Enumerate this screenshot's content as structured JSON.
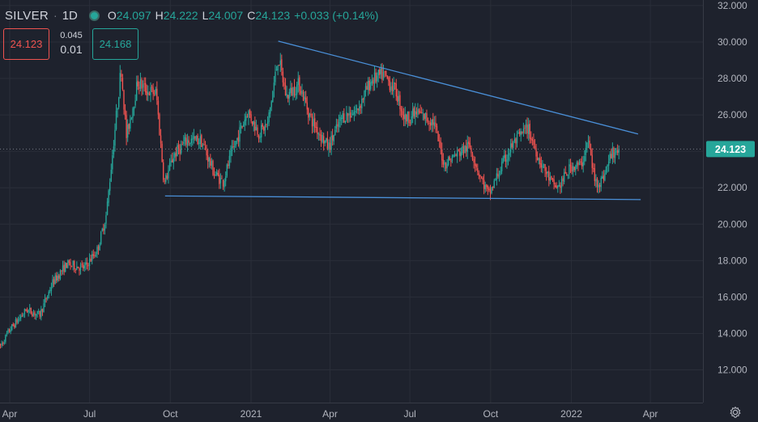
{
  "header": {
    "symbol": "SILVER",
    "timeframe": "1D",
    "open_label": "O",
    "open": "24.097",
    "high_label": "H",
    "high": "24.222",
    "low_label": "L",
    "low": "24.007",
    "close_label": "C",
    "close": "24.123",
    "change": "+0.033 (+0.14%)"
  },
  "trade": {
    "bid": "24.123",
    "spread_top": "0.045",
    "spread_bottom": "0.01",
    "ask": "24.168"
  },
  "colors": {
    "up": "#26a69a",
    "down": "#ef5350",
    "trendline": "#4a90d9",
    "background": "#1e222d",
    "grid": "#2a2e39"
  },
  "chart_data": {
    "type": "candlestick",
    "x_ticks": [
      "Apr",
      "Jul",
      "Oct",
      "2021",
      "Apr",
      "Jul",
      "Oct",
      "2022",
      "Apr"
    ],
    "x_tick_dates": [
      "2020-04-01",
      "2020-07-01",
      "2020-10-01",
      "2021-01-01",
      "2021-04-01",
      "2021-07-01",
      "2021-10-01",
      "2022-01-01",
      "2022-04-01"
    ],
    "y_ticks": [
      "32.000",
      "30.000",
      "28.000",
      "26.000",
      "24.000",
      "22.000",
      "20.000",
      "18.000",
      "16.000",
      "14.000",
      "12.000"
    ],
    "ylim": [
      10.9,
      32.2
    ],
    "grid": true,
    "last_price": "24.123",
    "price_path": [
      [
        "2020-03-20",
        13.2
      ],
      [
        "2020-04-01",
        14.2
      ],
      [
        "2020-04-20",
        15.3
      ],
      [
        "2020-05-05",
        15.0
      ],
      [
        "2020-05-20",
        16.8
      ],
      [
        "2020-06-05",
        17.8
      ],
      [
        "2020-06-25",
        17.6
      ],
      [
        "2020-07-10",
        18.6
      ],
      [
        "2020-07-20",
        20.5
      ],
      [
        "2020-07-28",
        24.3
      ],
      [
        "2020-08-06",
        28.6
      ],
      [
        "2020-08-12",
        24.8
      ],
      [
        "2020-08-25",
        27.8
      ],
      [
        "2020-09-05",
        27.3
      ],
      [
        "2020-09-15",
        27.2
      ],
      [
        "2020-09-24",
        22.2
      ],
      [
        "2020-10-05",
        23.8
      ],
      [
        "2020-10-20",
        24.6
      ],
      [
        "2020-11-05",
        24.6
      ],
      [
        "2020-11-20",
        22.8
      ],
      [
        "2020-11-30",
        22.3
      ],
      [
        "2020-12-10",
        23.9
      ],
      [
        "2020-12-28",
        26.2
      ],
      [
        "2021-01-10",
        25.0
      ],
      [
        "2021-01-20",
        25.5
      ],
      [
        "2021-02-01",
        29.2
      ],
      [
        "2021-02-10",
        27.0
      ],
      [
        "2021-02-25",
        27.7
      ],
      [
        "2021-03-10",
        25.8
      ],
      [
        "2021-03-30",
        24.2
      ],
      [
        "2021-04-15",
        25.9
      ],
      [
        "2021-05-01",
        26.2
      ],
      [
        "2021-05-18",
        27.9
      ],
      [
        "2021-06-01",
        28.2
      ],
      [
        "2021-06-15",
        27.3
      ],
      [
        "2021-06-25",
        25.8
      ],
      [
        "2021-07-10",
        26.1
      ],
      [
        "2021-07-28",
        25.6
      ],
      [
        "2021-08-09",
        23.3
      ],
      [
        "2021-08-25",
        23.9
      ],
      [
        "2021-09-07",
        24.3
      ],
      [
        "2021-09-20",
        22.5
      ],
      [
        "2021-09-29",
        21.6
      ],
      [
        "2021-10-10",
        22.8
      ],
      [
        "2021-10-25",
        24.3
      ],
      [
        "2021-11-12",
        25.3
      ],
      [
        "2021-11-25",
        23.6
      ],
      [
        "2021-12-10",
        22.2
      ],
      [
        "2021-12-17",
        22.0
      ],
      [
        "2022-01-01",
        23.2
      ],
      [
        "2022-01-12",
        23.2
      ],
      [
        "2022-01-20",
        24.6
      ],
      [
        "2022-01-28",
        22.3
      ],
      [
        "2022-02-05",
        22.4
      ],
      [
        "2022-02-16",
        23.9
      ],
      [
        "2022-02-25",
        24.12
      ]
    ],
    "trendlines": [
      {
        "from": [
          "2020-09-25",
          21.55
        ],
        "to": [
          "2022-03-21",
          21.35
        ]
      },
      {
        "from": [
          "2021-02-01",
          30.05
        ],
        "to": [
          "2022-03-18",
          24.95
        ]
      }
    ]
  }
}
